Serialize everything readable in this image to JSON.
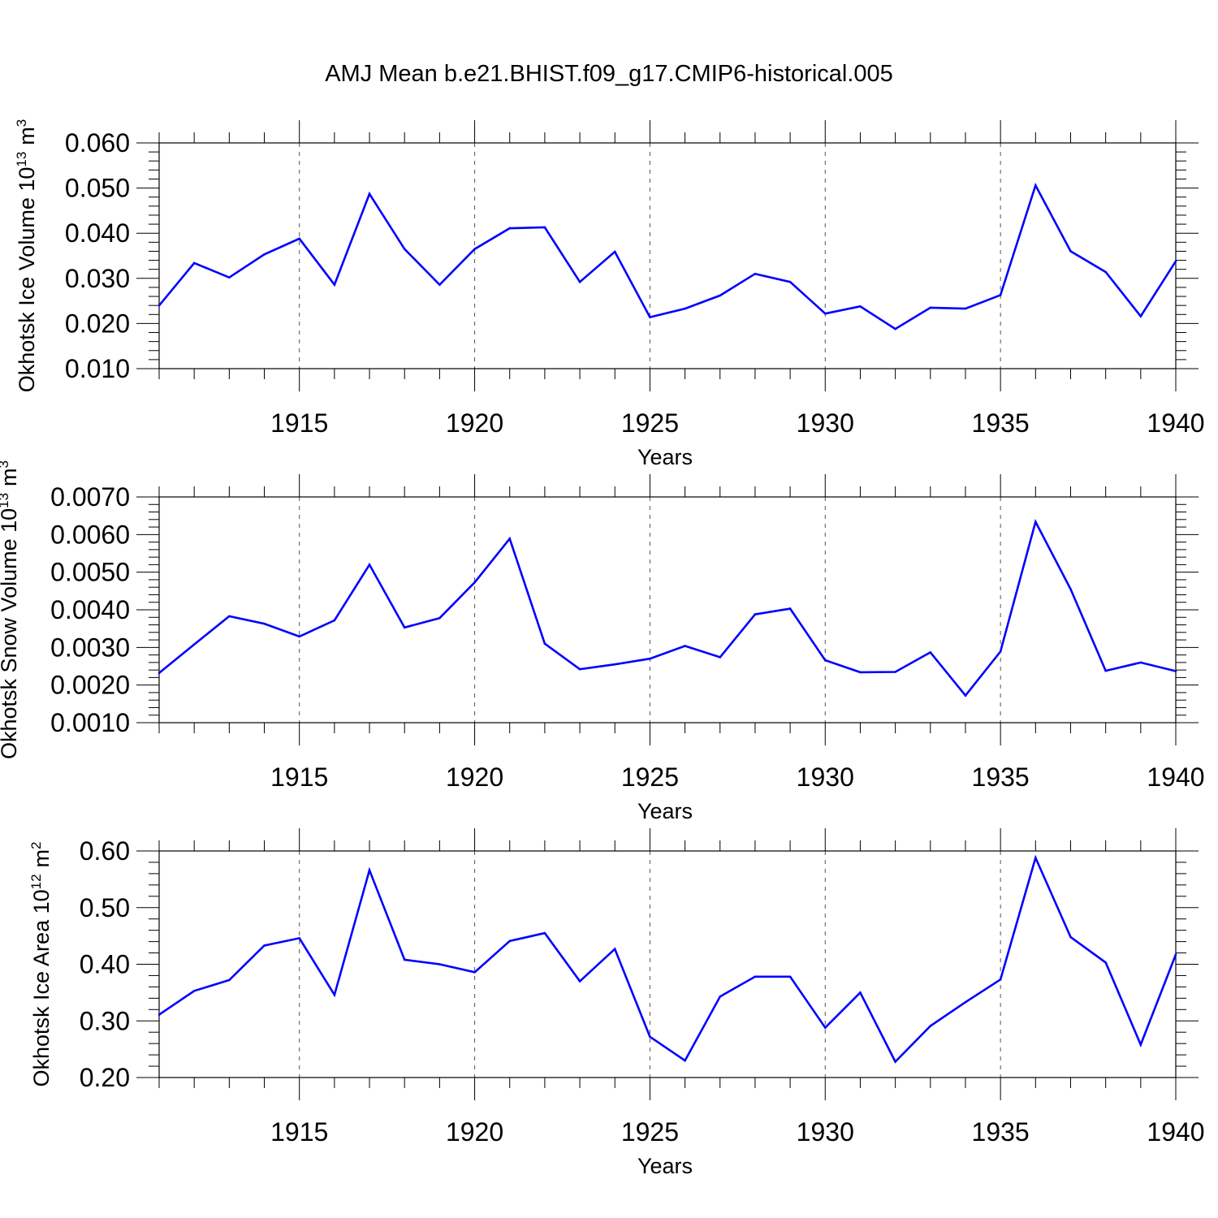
{
  "figure_title": "AMJ Mean b.e21.BHIST.f09_g17.CMIP6-historical.005",
  "line_color": "#0000ff",
  "chart_data": [
    {
      "type": "line",
      "title": "AMJ Mean b.e21.BHIST.f09_g17.CMIP6-historical.005",
      "ylabel": "Okhotsk Ice Volume 10",
      "ylabel_exp": "13",
      "ylabel_unit": "m",
      "ylabel_unit_exp": "3",
      "xlabel": "Years",
      "xlim": [
        1911,
        1940
      ],
      "ylim": [
        0.01,
        0.06
      ],
      "grid": "dashed vertical lines at major x ticks",
      "xticks": [
        1915,
        1920,
        1925,
        1930,
        1935,
        1940
      ],
      "xtick_labels": [
        "1915",
        "1920",
        "1925",
        "1930",
        "1935",
        "1940"
      ],
      "yticks": [
        0.01,
        0.02,
        0.03,
        0.04,
        0.05,
        0.06
      ],
      "ytick_labels": [
        "0.010",
        "0.020",
        "0.030",
        "0.040",
        "0.050",
        "0.060"
      ],
      "x": [
        1911,
        1912,
        1913,
        1914,
        1915,
        1916,
        1917,
        1918,
        1919,
        1920,
        1921,
        1922,
        1923,
        1924,
        1925,
        1926,
        1927,
        1928,
        1929,
        1930,
        1931,
        1932,
        1933,
        1934,
        1935,
        1936,
        1937,
        1938,
        1939,
        1940
      ],
      "values": [
        0.024,
        0.0334,
        0.0302,
        0.0353,
        0.0388,
        0.0286,
        0.0487,
        0.0365,
        0.0286,
        0.0365,
        0.0411,
        0.0413,
        0.0292,
        0.0359,
        0.0214,
        0.0233,
        0.0262,
        0.031,
        0.0292,
        0.0222,
        0.0238,
        0.0188,
        0.0235,
        0.0233,
        0.0263,
        0.0506,
        0.036,
        0.0314,
        0.0216,
        0.0338
      ]
    },
    {
      "type": "line",
      "ylabel": "Okhotsk Snow Volume 10",
      "ylabel_exp": "13",
      "ylabel_unit": "m",
      "ylabel_unit_exp": "3",
      "xlabel": "Years",
      "xlim": [
        1911,
        1940
      ],
      "ylim": [
        0.001,
        0.007
      ],
      "grid": "dashed vertical lines at major x ticks",
      "xticks": [
        1915,
        1920,
        1925,
        1930,
        1935,
        1940
      ],
      "xtick_labels": [
        "1915",
        "1920",
        "1925",
        "1930",
        "1935",
        "1940"
      ],
      "yticks": [
        0.001,
        0.002,
        0.003,
        0.004,
        0.005,
        0.006,
        0.007
      ],
      "ytick_labels": [
        "0.0010",
        "0.0020",
        "0.0030",
        "0.0040",
        "0.0050",
        "0.0060",
        "0.0070"
      ],
      "x": [
        1911,
        1912,
        1913,
        1914,
        1915,
        1916,
        1917,
        1918,
        1919,
        1920,
        1921,
        1922,
        1923,
        1924,
        1925,
        1926,
        1927,
        1928,
        1929,
        1930,
        1931,
        1932,
        1933,
        1934,
        1935,
        1936,
        1937,
        1938,
        1939,
        1940
      ],
      "values": [
        0.00232,
        0.00308,
        0.00383,
        0.00363,
        0.00329,
        0.00372,
        0.0052,
        0.00353,
        0.00378,
        0.00473,
        0.00589,
        0.0031,
        0.00242,
        0.00255,
        0.0027,
        0.00304,
        0.00274,
        0.00388,
        0.00403,
        0.00266,
        0.00234,
        0.00235,
        0.00287,
        0.00172,
        0.00289,
        0.00634,
        0.00455,
        0.00238,
        0.0026,
        0.00237
      ]
    },
    {
      "type": "line",
      "ylabel": "Okhotsk Ice Area 10",
      "ylabel_exp": "12",
      "ylabel_unit": "m",
      "ylabel_unit_exp": "2",
      "xlabel": "Years",
      "xlim": [
        1911,
        1940
      ],
      "ylim": [
        0.2,
        0.6
      ],
      "grid": "dashed vertical lines at major x ticks",
      "xticks": [
        1915,
        1920,
        1925,
        1930,
        1935,
        1940
      ],
      "xtick_labels": [
        "1915",
        "1920",
        "1925",
        "1930",
        "1935",
        "1940"
      ],
      "yticks": [
        0.2,
        0.3,
        0.4,
        0.5,
        0.6
      ],
      "ytick_labels": [
        "0.20",
        "0.30",
        "0.40",
        "0.50",
        "0.60"
      ],
      "x": [
        1911,
        1912,
        1913,
        1914,
        1915,
        1916,
        1917,
        1918,
        1919,
        1920,
        1921,
        1922,
        1923,
        1924,
        1925,
        1926,
        1927,
        1928,
        1929,
        1930,
        1931,
        1932,
        1933,
        1934,
        1935,
        1936,
        1937,
        1938,
        1939,
        1940
      ],
      "values": [
        0.311,
        0.353,
        0.372,
        0.433,
        0.446,
        0.346,
        0.566,
        0.408,
        0.4,
        0.386,
        0.441,
        0.455,
        0.37,
        0.427,
        0.272,
        0.23,
        0.343,
        0.378,
        0.378,
        0.288,
        0.35,
        0.228,
        0.291,
        0.333,
        0.373,
        0.588,
        0.448,
        0.403,
        0.258,
        0.417
      ]
    }
  ]
}
